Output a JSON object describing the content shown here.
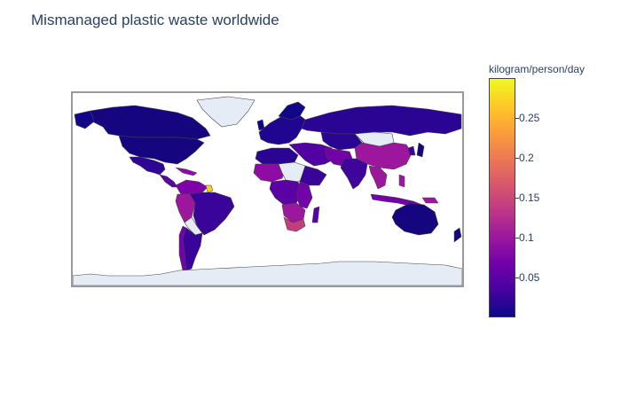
{
  "title": "Mismanaged plastic waste worldwide",
  "colorbar": {
    "title": "kilogram/person/day",
    "min": 0.0,
    "max": 0.3,
    "colorscale": [
      "#0d0887",
      "#46039f",
      "#7201a8",
      "#9c179e",
      "#bd3786",
      "#d8576b",
      "#ed7953",
      "#fb9f3a",
      "#fdca26",
      "#f0f921"
    ],
    "ticks": [
      {
        "value": 0.05,
        "label": "0.05"
      },
      {
        "value": 0.1,
        "label": "0.1"
      },
      {
        "value": 0.15,
        "label": "0.15"
      },
      {
        "value": 0.2,
        "label": "0.2"
      },
      {
        "value": 0.25,
        "label": "0.25"
      }
    ]
  },
  "map": {
    "projection": "equirectangular",
    "no_data_color": "#e5ecf6",
    "border_color": "#444444"
  }
}
